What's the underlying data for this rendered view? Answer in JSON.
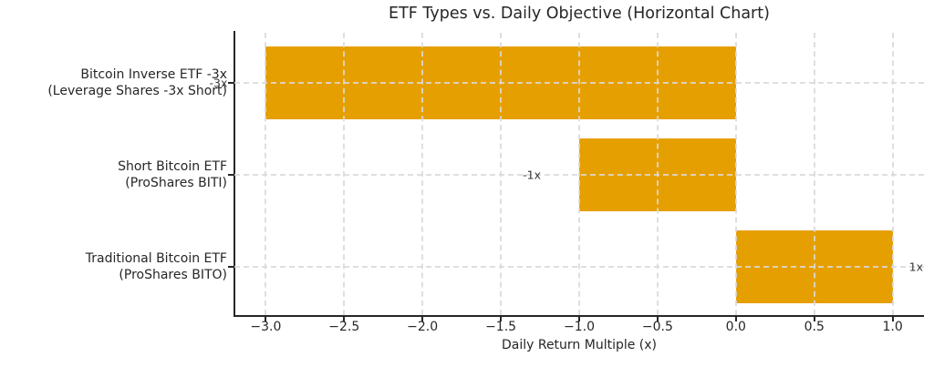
{
  "title": "ETF Types vs. Daily Objective (Horizontal Chart)",
  "xlabel": "Daily Return Multiple (x)",
  "colors": {
    "bar": "#E69F00",
    "spine": "#262626",
    "grid": "#d9d9d9",
    "text": "#262626",
    "value_label": "#3a3a3a",
    "background": "#ffffff"
  },
  "chart_data": {
    "type": "bar",
    "orientation": "horizontal",
    "title": "ETF Types vs. Daily Objective (Horizontal Chart)",
    "xlabel": "Daily Return Multiple (x)",
    "ylabel": "",
    "xlim": [
      -3.2,
      1.2
    ],
    "xticks": [
      -3.0,
      -2.5,
      -2.0,
      -1.5,
      -1.0,
      -0.5,
      0.0,
      0.5,
      1.0
    ],
    "xtick_labels": [
      "−3.0",
      "−2.5",
      "−2.0",
      "−1.5",
      "−1.0",
      "−0.5",
      "0.0",
      "0.5",
      "1.0"
    ],
    "grid": true,
    "grid_style": "dashed",
    "legend": false,
    "bar_color": "#E69F00",
    "bars": [
      {
        "label_lines": [
          "Bitcoin Inverse ETF -3x",
          "(Leverage Shares -3x Short)"
        ],
        "value": -3,
        "value_label": "-3x"
      },
      {
        "label_lines": [
          "Short Bitcoin ETF",
          "(ProShares BITI)"
        ],
        "value": -1,
        "value_label": "-1x"
      },
      {
        "label_lines": [
          "Traditional Bitcoin ETF",
          "(ProShares BITO)"
        ],
        "value": 1,
        "value_label": "1x"
      }
    ]
  }
}
